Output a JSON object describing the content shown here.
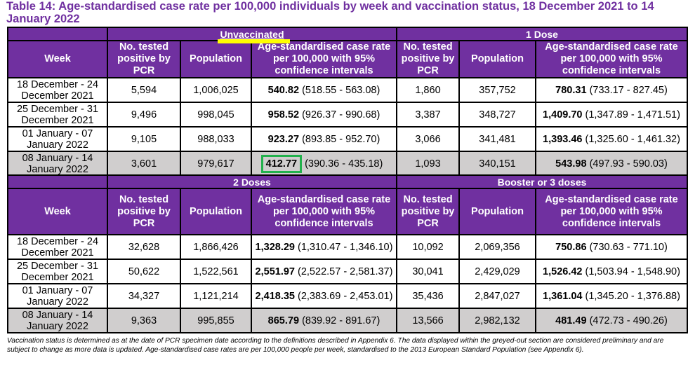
{
  "title": "Table 14: Age-standardised case rate per 100,000 individuals by week and vaccination status, 18 December 2021 to 14 January 2022",
  "column_headers": {
    "week": "Week",
    "tested_left": "No. tested positive by PCR",
    "tested_right": "No. tested positive by PCR",
    "population": "Population",
    "rate_left": "Age-standardised case rate per 100,000 with 95% confidence intervals",
    "rate_right": "Age-standardised case rate per 100,000 with 95% confidence intervals"
  },
  "sections": [
    {
      "groups": [
        "Unvaccinated",
        "1 Dose"
      ],
      "rows": [
        {
          "week": "18 December - 24 December 2021",
          "a_tested": "5,594",
          "a_pop": "1,006,025",
          "a_rate": "540.82",
          "a_ci": "(518.55 - 563.08)",
          "b_tested": "1,860",
          "b_pop": "357,752",
          "b_rate": "780.31",
          "b_ci": "(733.17 - 827.45)"
        },
        {
          "week": "25 December - 31 December 2021",
          "a_tested": "9,496",
          "a_pop": "998,045",
          "a_rate": "958.52",
          "a_ci": "(926.37 - 990.68)",
          "b_tested": "3,387",
          "b_pop": "348,727",
          "b_rate": "1,409.70",
          "b_ci": "(1,347.89 - 1,471.51)"
        },
        {
          "week": "01 January - 07 January 2022",
          "a_tested": "9,105",
          "a_pop": "988,033",
          "a_rate": "923.27",
          "a_ci": "(893.85 - 952.70)",
          "b_tested": "3,066",
          "b_pop": "341,481",
          "b_rate": "1,393.46",
          "b_ci": "(1,325.60 - 1,461.32)"
        },
        {
          "week": "08 January - 14 January 2022",
          "a_tested": "3,601",
          "a_pop": "979,617",
          "a_rate": "412.77",
          "a_ci": "(390.36 - 435.18)",
          "b_tested": "1,093",
          "b_pop": "340,151",
          "b_rate": "543.98",
          "b_ci": "(497.93 - 590.03)",
          "greyed": true
        }
      ]
    },
    {
      "groups": [
        "2 Doses",
        "Booster or 3 doses"
      ],
      "rows": [
        {
          "week": "18 December - 24 December 2021",
          "a_tested": "32,628",
          "a_pop": "1,866,426",
          "a_rate": "1,328.29",
          "a_ci": "(1,310.47 - 1,346.10)",
          "b_tested": "10,092",
          "b_pop": "2,069,356",
          "b_rate": "750.86",
          "b_ci": "(730.63 - 771.10)"
        },
        {
          "week": "25 December - 31 December 2021",
          "a_tested": "50,622",
          "a_pop": "1,522,561",
          "a_rate": "2,551.97",
          "a_ci": "(2,522.57 - 2,581.37)",
          "b_tested": "30,041",
          "b_pop": "2,429,029",
          "b_rate": "1,526.42",
          "b_ci": "(1,503.94 - 1,548.90)"
        },
        {
          "week": "01 January - 07 January 2022",
          "a_tested": "34,327",
          "a_pop": "1,121,214",
          "a_rate": "2,418.35",
          "a_ci": "(2,383.69 - 2,453.01)",
          "b_tested": "35,436",
          "b_pop": "2,847,027",
          "b_rate": "1,361.04",
          "b_ci": "(1,345.20 - 1,376.88)"
        },
        {
          "week": "08 January - 14 January 2022",
          "a_tested": "9,363",
          "a_pop": "995,855",
          "a_rate": "865.79",
          "a_ci": "(839.92 - 891.67)",
          "b_tested": "13,566",
          "b_pop": "2,982,132",
          "b_rate": "481.49",
          "b_ci": "(472.73 - 490.26)",
          "greyed": true
        }
      ]
    }
  ],
  "annotations": {
    "underline_highlight_color": "#ffff00",
    "box_highlight_color": "#22b14c",
    "header_color": "#7030a0",
    "greyed_row_color": "#d0cece"
  },
  "footnote": "Vaccination status is determined as at the date of PCR specimen date according to the definitions described in Appendix 6. The data displayed within the greyed-out section are considered preliminary and are subject to change as more data is updated. Age-standardised case rates are per 100,000 people per week, standardised to the 2013 European Standard Population (see Appendix 6)."
}
